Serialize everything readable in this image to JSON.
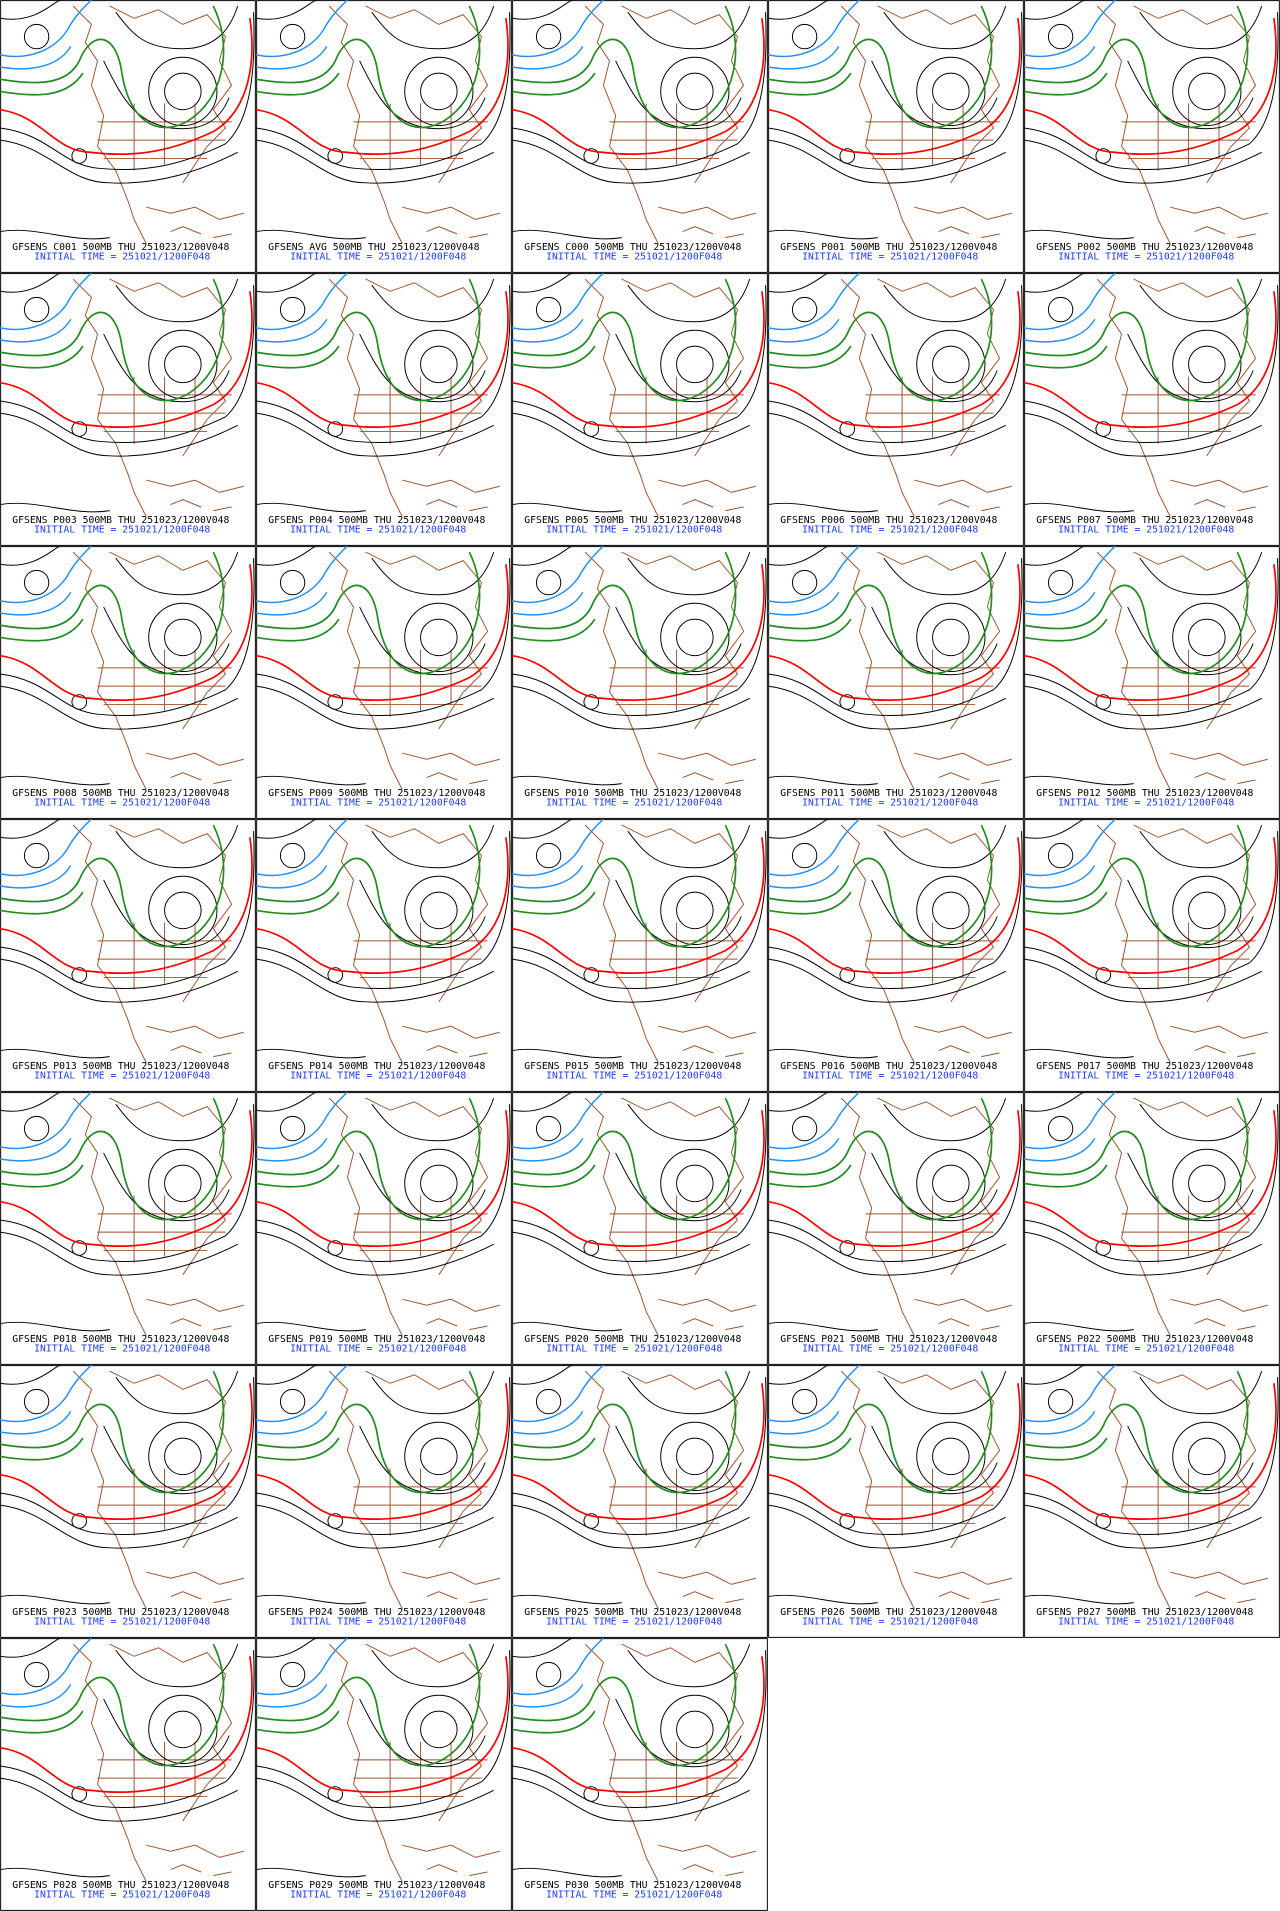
{
  "panels": [
    {
      "title": "GFSENS C001 500MB THU 251023/1200V048",
      "init": "INITIAL TIME = 251021/1200F048"
    },
    {
      "title": "GFSENS AVG 500MB THU 251023/1200V048",
      "init": "INITIAL TIME = 251021/1200F048"
    },
    {
      "title": "GFSENS C000 500MB THU 251023/1200V048",
      "init": "INITIAL TIME = 251021/1200F048"
    },
    {
      "title": "GFSENS P001 500MB THU 251023/1200V048",
      "init": "INITIAL TIME = 251021/1200F048"
    },
    {
      "title": "GFSENS P002 500MB THU 251023/1200V048",
      "init": "INITIAL TIME = 251021/1200F048"
    },
    {
      "title": "GFSENS P003 500MB THU 251023/1200V048",
      "init": "INITIAL TIME = 251021/1200F048"
    },
    {
      "title": "GFSENS P004 500MB THU 251023/1200V048",
      "init": "INITIAL TIME = 251021/1200F048"
    },
    {
      "title": "GFSENS P005 500MB THU 251023/1200V048",
      "init": "INITIAL TIME = 251021/1200F048"
    },
    {
      "title": "GFSENS P006 500MB THU 251023/1200V048",
      "init": "INITIAL TIME = 251021/1200F048"
    },
    {
      "title": "GFSENS P007 500MB THU 251023/1200V048",
      "init": "INITIAL TIME = 251021/1200F048"
    },
    {
      "title": "GFSENS P008 500MB THU 251023/1200V048",
      "init": "INITIAL TIME = 251021/1200F048"
    },
    {
      "title": "GFSENS P009 500MB THU 251023/1200V048",
      "init": "INITIAL TIME = 251021/1200F048"
    },
    {
      "title": "GFSENS P010 500MB THU 251023/1200V048",
      "init": "INITIAL TIME = 251021/1200F048"
    },
    {
      "title": "GFSENS P011 500MB THU 251023/1200V048",
      "init": "INITIAL TIME = 251021/1200F048"
    },
    {
      "title": "GFSENS P012 500MB THU 251023/1200V048",
      "init": "INITIAL TIME = 251021/1200F048"
    },
    {
      "title": "GFSENS P013 500MB THU 251023/1200V048",
      "init": "INITIAL TIME = 251021/1200F048"
    },
    {
      "title": "GFSENS P014 500MB THU 251023/1200V048",
      "init": "INITIAL TIME = 251021/1200F048"
    },
    {
      "title": "GFSENS P015 500MB THU 251023/1200V048",
      "init": "INITIAL TIME = 251021/1200F048"
    },
    {
      "title": "GFSENS P016 500MB THU 251023/1200V048",
      "init": "INITIAL TIME = 251021/1200F048"
    },
    {
      "title": "GFSENS P017 500MB THU 251023/1200V048",
      "init": "INITIAL TIME = 251021/1200F048"
    },
    {
      "title": "GFSENS P018 500MB THU 251023/1200V048",
      "init": "INITIAL TIME = 251021/1200F048"
    },
    {
      "title": "GFSENS P019 500MB THU 251023/1200V048",
      "init": "INITIAL TIME = 251021/1200F048"
    },
    {
      "title": "GFSENS P020 500MB THU 251023/1200V048",
      "init": "INITIAL TIME = 251021/1200F048"
    },
    {
      "title": "GFSENS P021 500MB THU 251023/1200V048",
      "init": "INITIAL TIME = 251021/1200F048"
    },
    {
      "title": "GFSENS P022 500MB THU 251023/1200V048",
      "init": "INITIAL TIME = 251021/1200F048"
    },
    {
      "title": "GFSENS P023 500MB THU 251023/1200V048",
      "init": "INITIAL TIME = 251021/1200F048"
    },
    {
      "title": "GFSENS P024 500MB THU 251023/1200V048",
      "init": "INITIAL TIME = 251021/1200F048"
    },
    {
      "title": "GFSENS P025 500MB THU 251023/1200V048",
      "init": "INITIAL TIME = 251021/1200F048"
    },
    {
      "title": "GFSENS P026 500MB THU 251023/1200V048",
      "init": "INITIAL TIME = 251021/1200F048"
    },
    {
      "title": "GFSENS P027 500MB THU 251023/1200V048",
      "init": "INITIAL TIME = 251021/1200F048"
    },
    {
      "title": "GFSENS P028 500MB THU 251023/1200V048",
      "init": "INITIAL TIME = 251021/1200F048"
    },
    {
      "title": "GFSENS P029 500MB THU 251023/1200V048",
      "init": "INITIAL TIME = 251021/1200F048"
    },
    {
      "title": "GFSENS P030 500MB THU 251023/1200V048",
      "init": "INITIAL TIME = 251021/1200F048"
    }
  ]
}
